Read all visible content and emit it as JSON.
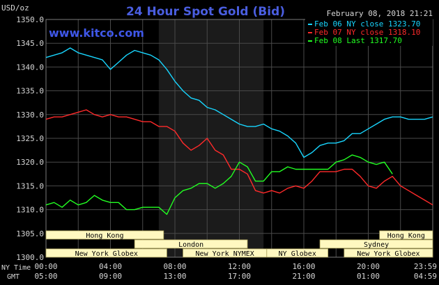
{
  "header": {
    "y_unit": "USD/oz",
    "title": "24 Hour Spot Gold (Bid)",
    "timestamp": "February 08, 2018 21:21",
    "watermark": "www.kitco.com"
  },
  "colors": {
    "background": "#000000",
    "plot_background": "#000000",
    "market_hours_band": "#1b1b1b",
    "grid": "#4a4a4a",
    "axis_text": "#d8d8d8",
    "title": "#4a5ee0",
    "watermark": "#3f57e8",
    "session_box_fill": "#fff8c0",
    "session_box_text": "#000000"
  },
  "legend": {
    "placement": "top-right",
    "items": [
      {
        "label": "Feb 06 NY close 1323.70",
        "color": "#18d6ff"
      },
      {
        "label": "Feb 07 NY close 1318.10",
        "color": "#ff2a2a"
      },
      {
        "label": "Feb 08 Last 1317.70",
        "color": "#22ff22"
      }
    ]
  },
  "axis_labels": {
    "x_top_row_label": "NY Time",
    "x_bottom_row_label": "GMT"
  },
  "sessions": [
    {
      "name": "Hong Kong",
      "start_hour": 0,
      "end_hour": 7.3,
      "row": 1
    },
    {
      "name": "Hong Kong",
      "start_hour": 20.7,
      "end_hour": 24,
      "row": 1
    },
    {
      "name": "London",
      "start_hour": 5.5,
      "end_hour": 12.5,
      "row": 2
    },
    {
      "name": "Sydney",
      "start_hour": 17,
      "end_hour": 24,
      "row": 2
    },
    {
      "name": "New York Globex",
      "start_hour": 0,
      "end_hour": 7.5,
      "row": 3
    },
    {
      "name": "New York NYMEX",
      "start_hour": 8.5,
      "end_hour": 13.7,
      "row": 3
    },
    {
      "name": "NY Globex",
      "start_hour": 13.7,
      "end_hour": 17.5,
      "row": 3
    },
    {
      "name": "New York Globex",
      "start_hour": 18.5,
      "end_hour": 24,
      "row": 3
    }
  ],
  "chart_data": {
    "type": "line",
    "title": "24 Hour Spot Gold (Bid)",
    "ylabel": "USD/oz",
    "xlabel": "",
    "ylim": [
      1300,
      1350
    ],
    "xlim": [
      0,
      24
    ],
    "grid": true,
    "market_hours_band": [
      7,
      13.5
    ],
    "y_ticks": [
      "1300.0",
      "1305.0",
      "1310.0",
      "1315.0",
      "1320.0",
      "1325.0",
      "1330.0",
      "1335.0",
      "1340.0",
      "1345.0",
      "1350.0"
    ],
    "y_tick_values": [
      1300,
      1305,
      1310,
      1315,
      1320,
      1325,
      1330,
      1335,
      1340,
      1345,
      1350
    ],
    "x_tick_hours": [
      0,
      4,
      8,
      12,
      16,
      20,
      23.98
    ],
    "x_ticks_ny": [
      "00:00",
      "04:00",
      "08:00",
      "12:00",
      "16:00",
      "20:00",
      "23:59"
    ],
    "x_ticks_gmt": [
      "05:00",
      "09:00",
      "13:00",
      "17:00",
      "21:00",
      "01:00",
      "04:59"
    ],
    "series": [
      {
        "name": "Feb 06 NY close 1323.70",
        "color": "#18d6ff",
        "x": [
          0,
          0.5,
          1,
          1.5,
          2,
          2.5,
          3,
          3.5,
          4,
          4.5,
          5,
          5.5,
          6,
          6.5,
          7,
          7.5,
          8,
          8.5,
          9,
          9.5,
          10,
          10.5,
          11,
          11.5,
          12,
          12.5,
          13,
          13.5,
          14,
          14.5,
          15,
          15.5,
          16,
          16.5,
          17,
          17.5,
          18,
          18.5,
          19,
          19.5,
          20,
          20.5,
          21,
          21.5,
          22,
          22.5,
          23,
          23.5,
          24
        ],
        "y": [
          1342,
          1342.5,
          1343,
          1344,
          1343,
          1342.5,
          1342,
          1341.5,
          1339.5,
          1341,
          1342.5,
          1343.5,
          1343,
          1342.5,
          1341.5,
          1339.5,
          1337,
          1335,
          1333.5,
          1333,
          1331.5,
          1331,
          1330,
          1329,
          1328,
          1327.5,
          1327.5,
          1328,
          1327,
          1326.5,
          1325.5,
          1324,
          1321,
          1322,
          1323.5,
          1324,
          1324,
          1324.5,
          1326,
          1326,
          1327,
          1328,
          1329,
          1329.5,
          1329.5,
          1329,
          1329,
          1329,
          1329.5
        ]
      },
      {
        "name": "Feb 07 NY close 1318.10",
        "color": "#ff2a2a",
        "x": [
          0,
          0.5,
          1,
          1.5,
          2,
          2.5,
          3,
          3.5,
          4,
          4.5,
          5,
          5.5,
          6,
          6.5,
          7,
          7.5,
          8,
          8.5,
          9,
          9.5,
          10,
          10.5,
          11,
          11.5,
          12,
          12.5,
          13,
          13.5,
          14,
          14.5,
          15,
          15.5,
          16,
          16.5,
          17,
          17.5,
          18,
          18.5,
          19,
          19.5,
          20,
          20.5,
          21,
          21.5,
          22,
          22.5,
          23,
          23.5,
          24
        ],
        "y": [
          1329,
          1329.5,
          1329.5,
          1330,
          1330.5,
          1331,
          1330,
          1329.5,
          1330,
          1329.5,
          1329.5,
          1329,
          1328.5,
          1328.5,
          1327.5,
          1327.5,
          1326.5,
          1324,
          1322.5,
          1323.5,
          1325,
          1322.5,
          1321.5,
          1318.5,
          1318.5,
          1317.5,
          1314,
          1313.5,
          1314,
          1313.5,
          1314.5,
          1315,
          1314.5,
          1316,
          1318,
          1318,
          1318,
          1318.5,
          1318.5,
          1317,
          1315,
          1314.5,
          1316,
          1317,
          1315,
          1314,
          1313,
          1312,
          1311
        ]
      },
      {
        "name": "Feb 08 Last 1317.70",
        "color": "#22ff22",
        "x": [
          0,
          0.5,
          1,
          1.5,
          2,
          2.5,
          3,
          3.5,
          4,
          4.5,
          5,
          5.5,
          6,
          6.5,
          7,
          7.5,
          8,
          8.5,
          9,
          9.5,
          10,
          10.5,
          11,
          11.5,
          12,
          12.5,
          13,
          13.5,
          14,
          14.5,
          15,
          15.5,
          16,
          16.5,
          17,
          17.5,
          18,
          18.5,
          19,
          19.5,
          20,
          20.5,
          21,
          21.5
        ],
        "y": [
          1311,
          1311.5,
          1310.5,
          1312,
          1311,
          1311.5,
          1313,
          1312,
          1311.5,
          1311.5,
          1310,
          1310,
          1310.5,
          1310.5,
          1310.5,
          1309,
          1312.5,
          1314,
          1314.5,
          1315.5,
          1315.5,
          1314.5,
          1315.5,
          1317,
          1320,
          1319,
          1316,
          1316,
          1318,
          1318,
          1319,
          1318.5,
          1318.5,
          1318.5,
          1318.5,
          1318.5,
          1320,
          1320.5,
          1321.5,
          1321,
          1320,
          1319.5,
          1320,
          1317.5
        ]
      }
    ]
  }
}
